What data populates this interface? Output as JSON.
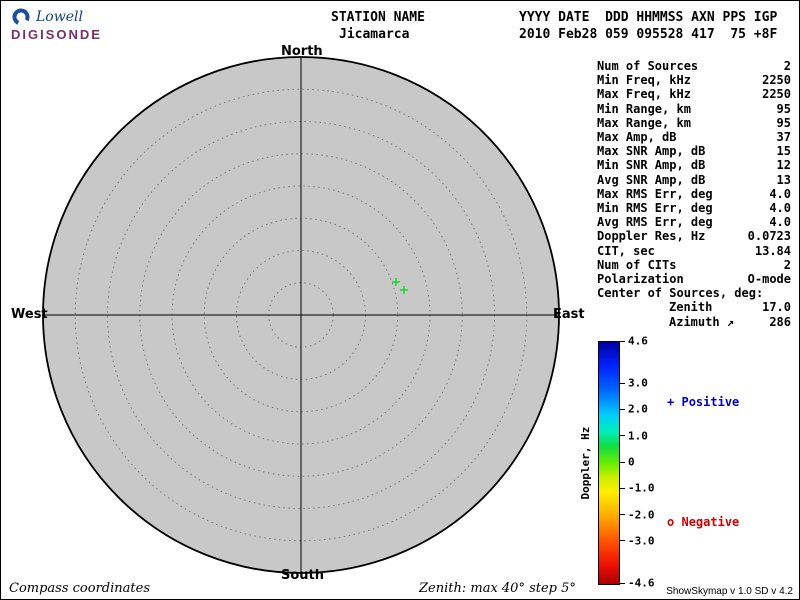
{
  "logo": {
    "line1": "Lowell",
    "line2": "DIGISONDE"
  },
  "header": {
    "station_label": "STATION NAME",
    "station_value": "Jicamarca",
    "fields_label": "YYYY DATE  DDD HHMMSS AXN PPS IGP",
    "fields_value": "2010 Feb28 059 095528 417  75 +8F"
  },
  "stats": {
    "rows": [
      {
        "label": "Num of Sources",
        "value": "2"
      },
      {
        "label": "Min Freq, kHz",
        "value": "2250"
      },
      {
        "label": "Max Freq, kHz",
        "value": "2250"
      },
      {
        "label": "Min Range, km",
        "value": "95"
      },
      {
        "label": "Max Range, km",
        "value": "95"
      },
      {
        "label": "Max Amp, dB",
        "value": "37"
      },
      {
        "label": "Max SNR Amp, dB",
        "value": "15"
      },
      {
        "label": "Min SNR Amp, dB",
        "value": "12"
      },
      {
        "label": "Avg SNR Amp, dB",
        "value": "13"
      },
      {
        "label": "Max RMS Err, deg",
        "value": "4.0"
      },
      {
        "label": "Min RMS Err, deg",
        "value": "4.0"
      },
      {
        "label": "Avg RMS Err, deg",
        "value": "4.0"
      },
      {
        "label": "Doppler Res, Hz",
        "value": "0.0723"
      },
      {
        "label": "CIT, sec",
        "value": "13.84"
      },
      {
        "label": "Num of CITs",
        "value": "2"
      },
      {
        "label": "Polarization",
        "value": "O-mode"
      },
      {
        "label": "Center of Sources, deg:",
        "value": ""
      },
      {
        "label": "Zenith",
        "value": "17.0",
        "indent": true
      },
      {
        "label": "Azimuth ↗",
        "value": "286",
        "indent": true
      }
    ]
  },
  "footer": {
    "left": "Compass coordinates",
    "center": "Zenith: max 40°  step 5°",
    "right": "ShowSkymap v 1.0  SD v 4.2"
  },
  "chart_data": {
    "type": "scatter",
    "title": "Digisonde skymap of echo sources",
    "projection": "polar, compass coordinates (radial = zenith angle, angular = azimuth)",
    "zenith_max_deg": 40,
    "zenith_step_deg": 5,
    "disc_color": "#c8c8c8",
    "ring_color": "#777777",
    "compass": {
      "north": "North",
      "south": "South",
      "west": "West",
      "east": "East"
    },
    "points": [
      {
        "x": 0.368,
        "y": -0.128,
        "zenith_deg": 16,
        "polarity": "positive",
        "doppler_hz": 0.7,
        "marker": "+",
        "color": "#00dd22"
      },
      {
        "x": 0.399,
        "y": -0.097,
        "zenith_deg": 17,
        "polarity": "positive",
        "doppler_hz": 0.7,
        "marker": "+",
        "color": "#00dd22"
      }
    ],
    "colorbar": {
      "label": "Doppler, Hz",
      "min": -4.6,
      "max": 4.6,
      "ticks": [
        {
          "value": 4.6,
          "label": "4.6"
        },
        {
          "value": 3.0,
          "label": "3.0"
        },
        {
          "value": 2.0,
          "label": "2.0"
        },
        {
          "value": 1.0,
          "label": "1.0"
        },
        {
          "value": 0,
          "label": "0"
        },
        {
          "value": -1.0,
          "label": "-1.0"
        },
        {
          "value": -2.0,
          "label": "-2.0"
        },
        {
          "value": -3.0,
          "label": "-3.0"
        },
        {
          "value": -4.6,
          "label": "-4.6"
        }
      ],
      "gradient": [
        "#0000a0 0%",
        "#0022ff 10%",
        "#0066ff 20%",
        "#00ccff 30%",
        "#00eebb 37%",
        "#11dd44 43%",
        "#66ee00 50%",
        "#ccee00 56%",
        "#ffee00 62%",
        "#ffaa00 72%",
        "#ff5500 82%",
        "#ee1100 92%",
        "#aa0000 100%"
      ]
    },
    "legend": [
      {
        "symbol": "+",
        "label": "Positive",
        "color": "#0000cc"
      },
      {
        "symbol": "o",
        "label": "Negative",
        "color": "#cc0000"
      }
    ]
  }
}
